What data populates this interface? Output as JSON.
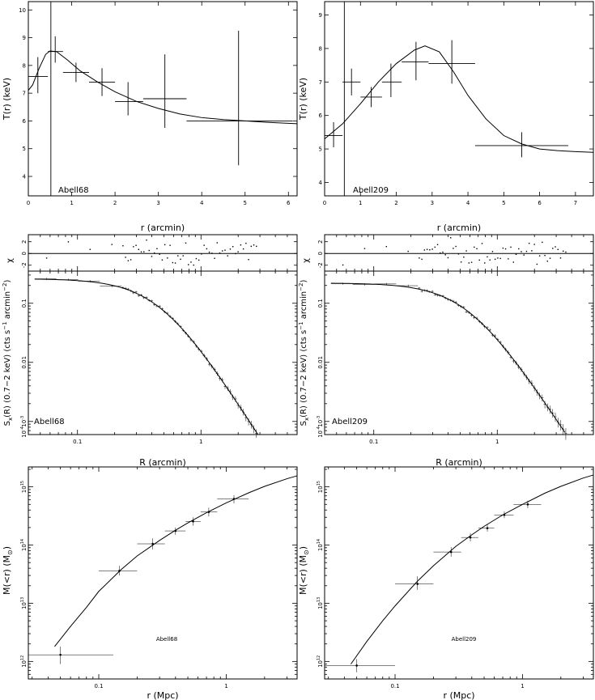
{
  "chart_data": [
    {
      "id": "t_a68",
      "type": "scatter",
      "name": "Abell68",
      "xlabel": "r (arcmin)",
      "ylabel": "T(r) (keV)",
      "xlim": [
        0,
        6.2
      ],
      "ylim": [
        3.3,
        10.3
      ],
      "xticks": [
        0,
        1,
        2,
        3,
        4,
        5,
        6
      ],
      "yticks": [
        4,
        5,
        6,
        7,
        8,
        9,
        10
      ],
      "points": [
        {
          "x": 0.22,
          "y": 7.6,
          "xlo": 0.0,
          "xhi": 0.45,
          "ylo": 7.0,
          "yhi": 8.3
        },
        {
          "x": 0.62,
          "y": 8.5,
          "xlo": 0.45,
          "xhi": 0.8,
          "ylo": 8.1,
          "yhi": 9.05
        },
        {
          "x": 1.1,
          "y": 7.75,
          "xlo": 0.8,
          "xhi": 1.4,
          "ylo": 7.4,
          "yhi": 8.1
        },
        {
          "x": 1.7,
          "y": 7.4,
          "xlo": 1.4,
          "xhi": 2.0,
          "ylo": 6.9,
          "yhi": 7.9
        },
        {
          "x": 2.3,
          "y": 6.7,
          "xlo": 2.0,
          "xhi": 2.65,
          "ylo": 6.2,
          "yhi": 7.4
        },
        {
          "x": 3.15,
          "y": 6.8,
          "xlo": 2.65,
          "xhi": 3.65,
          "ylo": 5.75,
          "yhi": 8.4
        },
        {
          "x": 4.85,
          "y": 6.0,
          "xlo": 3.65,
          "xhi": 6.1,
          "ylo": 4.4,
          "yhi": 9.25
        }
      ],
      "model": [
        [
          0.0,
          7.1
        ],
        [
          0.1,
          7.3
        ],
        [
          0.25,
          7.9
        ],
        [
          0.4,
          8.4
        ],
        [
          0.5,
          8.52
        ],
        [
          0.65,
          8.5
        ],
        [
          0.9,
          8.2
        ],
        [
          1.2,
          7.8
        ],
        [
          1.6,
          7.4
        ],
        [
          2.0,
          7.05
        ],
        [
          2.5,
          6.7
        ],
        [
          3.0,
          6.45
        ],
        [
          3.5,
          6.25
        ],
        [
          4.0,
          6.12
        ],
        [
          4.5,
          6.05
        ],
        [
          5.0,
          6.0
        ],
        [
          5.5,
          5.95
        ],
        [
          6.2,
          5.9
        ]
      ],
      "vline_x": 0.52,
      "vline_y": [
        3.3,
        10.3
      ]
    },
    {
      "id": "t_a209",
      "type": "scatter",
      "name": "Abell209",
      "xlabel": "r (arcmin)",
      "ylabel": "T(r) (keV)",
      "xlim": [
        0,
        7.5
      ],
      "ylim": [
        3.6,
        9.4
      ],
      "xticks": [
        0,
        1,
        2,
        3,
        4,
        5,
        6,
        7
      ],
      "yticks": [
        4,
        5,
        6,
        7,
        8,
        9
      ],
      "points": [
        {
          "x": 0.25,
          "y": 5.4,
          "xlo": 0.0,
          "xhi": 0.5,
          "ylo": 5.05,
          "yhi": 5.8
        },
        {
          "x": 0.75,
          "y": 7.0,
          "xlo": 0.5,
          "xhi": 1.0,
          "ylo": 6.6,
          "yhi": 7.4
        },
        {
          "x": 1.3,
          "y": 6.55,
          "xlo": 1.0,
          "xhi": 1.6,
          "ylo": 6.25,
          "yhi": 6.85
        },
        {
          "x": 1.85,
          "y": 7.0,
          "xlo": 1.6,
          "xhi": 2.15,
          "ylo": 6.55,
          "yhi": 7.55
        },
        {
          "x": 2.55,
          "y": 7.6,
          "xlo": 2.15,
          "xhi": 2.9,
          "ylo": 7.05,
          "yhi": 8.2
        },
        {
          "x": 3.55,
          "y": 7.55,
          "xlo": 2.9,
          "xhi": 4.2,
          "ylo": 6.95,
          "yhi": 8.25
        },
        {
          "x": 5.5,
          "y": 5.1,
          "xlo": 4.2,
          "xhi": 6.8,
          "ylo": 4.75,
          "yhi": 5.5
        }
      ],
      "model": [
        [
          0.0,
          5.3
        ],
        [
          0.5,
          5.75
        ],
        [
          1.0,
          6.35
        ],
        [
          1.5,
          7.0
        ],
        [
          2.0,
          7.55
        ],
        [
          2.5,
          7.95
        ],
        [
          2.8,
          8.08
        ],
        [
          3.2,
          7.9
        ],
        [
          3.6,
          7.3
        ],
        [
          4.0,
          6.6
        ],
        [
          4.5,
          5.9
        ],
        [
          5.0,
          5.4
        ],
        [
          5.5,
          5.15
        ],
        [
          6.0,
          5.0
        ],
        [
          6.5,
          4.95
        ],
        [
          7.0,
          4.92
        ],
        [
          7.5,
          4.9
        ]
      ],
      "vline_x": 0.55,
      "vline_y": [
        3.6,
        9.4
      ]
    },
    {
      "id": "sx_a68",
      "type": "scatter",
      "name": "Abell68",
      "xlabel": "R (arcmin)",
      "ylabel": "S_x(R) (0.7-2 keV) (cts s^-1 arcmin^-2)",
      "xscale": "log",
      "yscale": "log",
      "xlim": [
        0.04,
        6.0
      ],
      "ylim": [
        0.0006,
        0.35
      ],
      "xtick_labels": [
        "0.1",
        "1"
      ],
      "ytick_labels": [
        "0.1",
        "0.01",
        "10^-3",
        "10^-4"
      ],
      "beta_model": {
        "S0": 0.26,
        "rc": 0.47,
        "beta": 0.72
      },
      "resid_ylim": [
        -3,
        3.2
      ],
      "resid_ytick_labels": [
        "2",
        "0",
        "-2"
      ],
      "resid_ylabel": "χ"
    },
    {
      "id": "sx_a209",
      "type": "scatter",
      "name": "Abell209",
      "xlabel": "R (arcmin)",
      "ylabel": "S_x(R) (0.7-2 keV) (cts s^-1 arcmin^-2)",
      "xscale": "log",
      "yscale": "log",
      "xlim": [
        0.04,
        6.0
      ],
      "ylim": [
        0.0006,
        0.35
      ],
      "xtick_labels": [
        "0.1",
        "1"
      ],
      "ytick_labels": [
        "0.1",
        "0.01",
        "10^-3",
        "10^-4"
      ],
      "beta_model": {
        "S0": 0.22,
        "rc": 0.58,
        "beta": 0.7
      },
      "resid_ylim": [
        -3,
        3.2
      ],
      "resid_ytick_labels": [
        "2",
        "0",
        "-2"
      ],
      "resid_ylabel": "χ"
    },
    {
      "id": "m_a68",
      "type": "scatter",
      "name": "Abell68",
      "xlabel": "r (Mpc)",
      "ylabel": "M(<r) (M_⊙)",
      "xscale": "log",
      "yscale": "log",
      "xlim": [
        0.028,
        3.6
      ],
      "ylim": [
        500000000000.0,
        2200000000000000.0
      ],
      "xtick_labels": [
        "0.1",
        "1"
      ],
      "ytick_labels": [
        "10^12",
        "10^13",
        "10^14",
        "10^15"
      ],
      "points": [
        {
          "x": 0.05,
          "y": 1300000000000.0,
          "xlo": 0.028,
          "xhi": 0.13,
          "ylo": 900000000000.0,
          "yhi": 1800000000000.0
        },
        {
          "x": 0.145,
          "y": 36000000000000.0,
          "xlo": 0.1,
          "xhi": 0.2,
          "ylo": 30000000000000.0,
          "yhi": 44000000000000.0
        },
        {
          "x": 0.265,
          "y": 105000000000000.0,
          "xlo": 0.2,
          "xhi": 0.33,
          "ylo": 84000000000000.0,
          "yhi": 130000000000000.0
        },
        {
          "x": 0.4,
          "y": 175000000000000.0,
          "xlo": 0.33,
          "xhi": 0.48,
          "ylo": 150000000000000.0,
          "yhi": 200000000000000.0
        },
        {
          "x": 0.55,
          "y": 255000000000000.0,
          "xlo": 0.48,
          "xhi": 0.63,
          "ylo": 215000000000000.0,
          "yhi": 300000000000000.0
        },
        {
          "x": 0.73,
          "y": 370000000000000.0,
          "xlo": 0.63,
          "xhi": 0.85,
          "ylo": 310000000000000.0,
          "yhi": 440000000000000.0
        },
        {
          "x": 1.15,
          "y": 620000000000000.0,
          "xlo": 0.85,
          "xhi": 1.5,
          "ylo": 520000000000000.0,
          "yhi": 720000000000000.0
        }
      ],
      "model": [
        [
          0.045,
          1800000000000.0
        ],
        [
          0.06,
          4000000000000.0
        ],
        [
          0.08,
          8500000000000.0
        ],
        [
          0.1,
          16000000000000.0
        ],
        [
          0.15,
          38000000000000.0
        ],
        [
          0.2,
          65000000000000.0
        ],
        [
          0.3,
          120000000000000.0
        ],
        [
          0.4,
          180000000000000.0
        ],
        [
          0.5,
          240000000000000.0
        ],
        [
          0.7,
          360000000000000.0
        ],
        [
          1.0,
          530000000000000.0
        ],
        [
          1.5,
          790000000000000.0
        ],
        [
          2.0,
          1020000000000000.0
        ],
        [
          3.0,
          1380000000000000.0
        ],
        [
          3.6,
          1550000000000000.0
        ]
      ]
    },
    {
      "id": "m_a209",
      "type": "scatter",
      "name": "Abell209",
      "xlabel": "r (Mpc)",
      "ylabel": "M(<r) (M_⊙)",
      "xscale": "log",
      "yscale": "log",
      "xlim": [
        0.028,
        3.6
      ],
      "ylim": [
        500000000000.0,
        2200000000000000.0
      ],
      "xtick_labels": [
        "0.1",
        "1"
      ],
      "ytick_labels": [
        "10^12",
        "10^13",
        "10^14",
        "10^15"
      ],
      "points": [
        {
          "x": 0.05,
          "y": 850000000000.0,
          "xlo": 0.028,
          "xhi": 0.1,
          "ylo": 650000000000.0,
          "yhi": 1100000000000.0
        },
        {
          "x": 0.15,
          "y": 21500000000000.0,
          "xlo": 0.1,
          "xhi": 0.2,
          "ylo": 17000000000000.0,
          "yhi": 29000000000000.0
        },
        {
          "x": 0.275,
          "y": 76000000000000.0,
          "xlo": 0.2,
          "xhi": 0.33,
          "ylo": 63000000000000.0,
          "yhi": 92000000000000.0
        },
        {
          "x": 0.39,
          "y": 135000000000000.0,
          "xlo": 0.33,
          "xhi": 0.45,
          "ylo": 115000000000000.0,
          "yhi": 160000000000000.0
        },
        {
          "x": 0.53,
          "y": 195000000000000.0,
          "xlo": 0.45,
          "xhi": 0.6,
          "ylo": 170000000000000.0,
          "yhi": 225000000000000.0
        },
        {
          "x": 0.72,
          "y": 330000000000000.0,
          "xlo": 0.6,
          "xhi": 0.85,
          "ylo": 290000000000000.0,
          "yhi": 380000000000000.0
        },
        {
          "x": 1.1,
          "y": 500000000000000.0,
          "xlo": 0.85,
          "xhi": 1.4,
          "ylo": 430000000000000.0,
          "yhi": 580000000000000.0
        }
      ],
      "model": [
        [
          0.045,
          900000000000.0
        ],
        [
          0.06,
          2200000000000.0
        ],
        [
          0.08,
          5000000000000.0
        ],
        [
          0.1,
          9000000000000.0
        ],
        [
          0.15,
          24000000000000.0
        ],
        [
          0.2,
          44000000000000.0
        ],
        [
          0.3,
          95000000000000.0
        ],
        [
          0.4,
          150000000000000.0
        ],
        [
          0.5,
          210000000000000.0
        ],
        [
          0.7,
          330000000000000.0
        ],
        [
          1.0,
          500000000000000.0
        ],
        [
          1.5,
          780000000000000.0
        ],
        [
          2.0,
          1020000000000000.0
        ],
        [
          3.0,
          1420000000000000.0
        ],
        [
          3.6,
          1600000000000000.0
        ]
      ]
    }
  ]
}
